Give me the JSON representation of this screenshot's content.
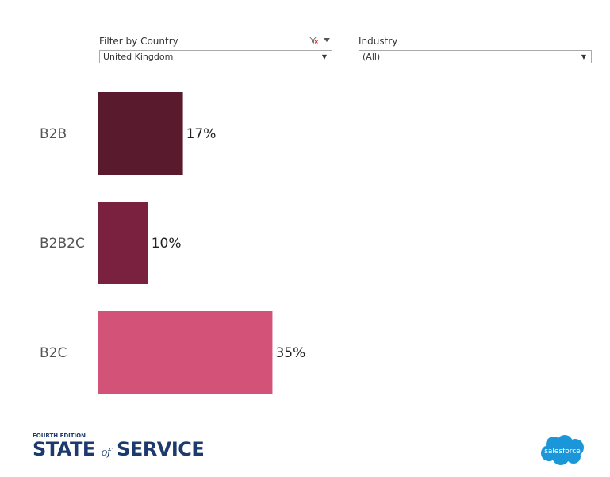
{
  "filters": {
    "country": {
      "label": "Filter by Country",
      "value": "United Kingdom",
      "clear_icon": "funnel-clear-icon",
      "menu_icon": "caret-down-icon"
    },
    "industry": {
      "label": "Industry",
      "value": "(All)"
    }
  },
  "chart_data": {
    "type": "bar",
    "orientation": "horizontal",
    "categories": [
      "B2B",
      "B2B2C",
      "B2C"
    ],
    "values": [
      17,
      10,
      35
    ],
    "value_labels": [
      "17%",
      "10%",
      "35%"
    ],
    "colors": [
      "#5a1a2e",
      "#7a2140",
      "#d35378"
    ],
    "title": "",
    "xlabel": "",
    "ylabel": "",
    "xlim": [
      0,
      100
    ],
    "grid": false
  },
  "footer": {
    "edition": "FOURTH EDITION",
    "title_part1": "STATE",
    "title_of": "of",
    "title_part2": "SERVICE",
    "brand": "salesforce",
    "brand_color": "#1b96d9",
    "title_color": "#1d3a6e"
  }
}
